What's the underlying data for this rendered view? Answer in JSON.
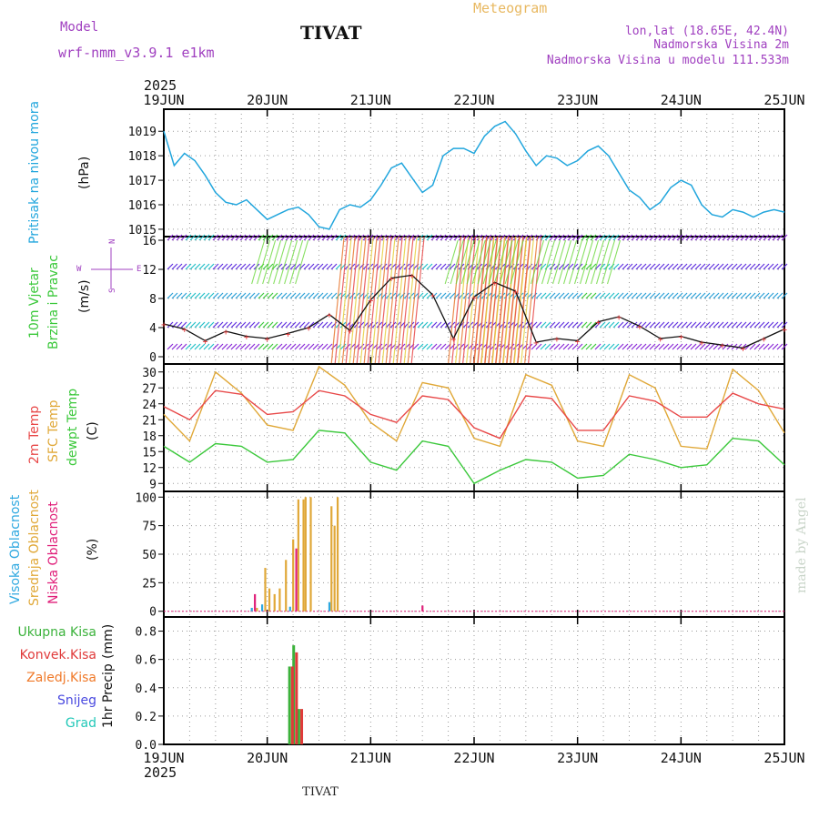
{
  "header": {
    "model_label": "Model",
    "model_name": "wrf-nmm_v3.9.1 e1km",
    "title": "TIVAT",
    "meteogram_label": "Meteogram",
    "lonlat": "lon,lat (18.65E, 42.4N)",
    "elevation": "Nadmorska Visina 2m",
    "model_elevation": "Nadmorska Visina u modelu 111.533m",
    "year": "2025",
    "footer_title": "TIVAT",
    "watermark": "made by Angel"
  },
  "colors": {
    "pressure": "#22a6dd",
    "temp2m": "#e84848",
    "sfc_temp": "#e0a838",
    "dewpt": "#3bc83b",
    "high_cloud": "#2ea8e0",
    "mid_cloud": "#e0a838",
    "low_cloud": "#e0207a",
    "total_precip": "#3bb23b",
    "conv_precip": "#e03a3a",
    "frozen_precip": "#f07a2a",
    "snow": "#4a4ae0",
    "hail": "#22c8b8",
    "header_purple": "#a040c0",
    "meteogram_orange": "#e8b860"
  },
  "chart_data": [
    {
      "type": "line",
      "panel": "pressure",
      "ylabel_main": "Pritisak na nivou mora",
      "unit": "(hPa)",
      "x_ticks": [
        "19JUN",
        "20JUN",
        "21JUN",
        "22JUN",
        "23JUN",
        "24JUN",
        "25JUN"
      ],
      "y_ticks": [
        1015,
        1016,
        1017,
        1018,
        1019
      ],
      "ylim": [
        1014.7,
        1019.9
      ],
      "grid": true,
      "series": [
        {
          "x": [
            0,
            0.1,
            0.2,
            0.3,
            0.4,
            0.5,
            0.6,
            0.7,
            0.8,
            0.9,
            1.0,
            1.1,
            1.2,
            1.3,
            1.4,
            1.5,
            1.6,
            1.7,
            1.8,
            1.9,
            2.0,
            2.1,
            2.2,
            2.3,
            2.4,
            2.5,
            2.6,
            2.7,
            2.8,
            2.9,
            3.0,
            3.1,
            3.2,
            3.3,
            3.4,
            3.5,
            3.6,
            3.7,
            3.8,
            3.9,
            4.0,
            4.1,
            4.2,
            4.3,
            4.4,
            4.5,
            4.6,
            4.7,
            4.8,
            4.9,
            5.0,
            5.1,
            5.2,
            5.3,
            5.4,
            5.5,
            5.6,
            5.7,
            5.8,
            5.9,
            6.0
          ],
          "values": [
            1019.0,
            1017.6,
            1018.1,
            1017.8,
            1017.2,
            1016.5,
            1016.1,
            1016.0,
            1016.2,
            1015.8,
            1015.4,
            1015.6,
            1015.8,
            1015.9,
            1015.6,
            1015.1,
            1015.0,
            1015.8,
            1016.0,
            1015.9,
            1016.2,
            1016.8,
            1017.5,
            1017.7,
            1017.1,
            1016.5,
            1016.8,
            1018.0,
            1018.3,
            1018.3,
            1018.1,
            1018.8,
            1019.2,
            1019.4,
            1018.9,
            1018.2,
            1017.6,
            1018.0,
            1017.9,
            1017.6,
            1017.8,
            1018.2,
            1018.4,
            1018.0,
            1017.3,
            1016.6,
            1016.3,
            1015.8,
            1016.1,
            1016.7,
            1017.0,
            1016.8,
            1016.0,
            1015.6,
            1015.5,
            1015.8,
            1015.7,
            1015.5,
            1015.7,
            1015.8,
            1015.7
          ]
        }
      ]
    },
    {
      "type": "line",
      "panel": "wind",
      "ylabel_main": "10m Vjetar",
      "ylabel_sub": "Brzina i Pravac",
      "unit": "(m/s)",
      "compass": [
        "N",
        "S",
        "W",
        "E"
      ],
      "y_ticks": [
        0,
        4,
        8,
        12,
        16
      ],
      "ylim": [
        -1,
        16.5
      ],
      "grid": true,
      "series": [
        {
          "name": "speed",
          "x": [
            0,
            0.2,
            0.4,
            0.6,
            0.8,
            1.0,
            1.2,
            1.4,
            1.6,
            1.8,
            2.0,
            2.2,
            2.4,
            2.6,
            2.8,
            3.0,
            3.2,
            3.4,
            3.6,
            3.8,
            4.0,
            4.2,
            4.4,
            4.6,
            4.8,
            5.0,
            5.2,
            5.4,
            5.6,
            5.8,
            6.0
          ],
          "values": [
            4.5,
            3.8,
            2.2,
            3.5,
            2.8,
            2.5,
            3.2,
            4.0,
            5.8,
            3.6,
            7.8,
            10.8,
            11.2,
            8.5,
            2.5,
            8.2,
            10.2,
            9.0,
            2.0,
            2.5,
            2.2,
            4.8,
            5.5,
            4.2,
            2.5,
            2.8,
            2.0,
            1.6,
            1.2,
            2.5,
            3.8
          ]
        }
      ],
      "shaded_periods": [
        [
          1.62,
          2.42
        ],
        [
          2.75,
          3.55
        ],
        [
          3.0,
          3.45
        ]
      ]
    },
    {
      "type": "line",
      "panel": "temperature",
      "ylabel_lines": [
        "2m Temp",
        "SFC Temp",
        "dewpt Temp"
      ],
      "unit": "(C)",
      "y_ticks": [
        9,
        12,
        15,
        18,
        21,
        24,
        27,
        30
      ],
      "ylim": [
        7.5,
        31.5
      ],
      "grid": true,
      "series": [
        {
          "name": "2m Temp",
          "x": [
            0,
            0.25,
            0.5,
            0.75,
            1.0,
            1.25,
            1.5,
            1.75,
            2.0,
            2.25,
            2.5,
            2.75,
            3.0,
            3.25,
            3.5,
            3.75,
            4.0,
            4.25,
            4.5,
            4.75,
            5.0,
            5.25,
            5.5,
            5.75,
            6.0
          ],
          "values": [
            23.5,
            21.0,
            26.5,
            25.8,
            22.0,
            22.5,
            26.5,
            25.5,
            22.0,
            20.5,
            25.5,
            24.8,
            19.5,
            17.5,
            25.5,
            25.0,
            19.0,
            19.0,
            25.5,
            24.5,
            21.5,
            21.5,
            26.0,
            24.0,
            23.0
          ]
        },
        {
          "name": "SFC Temp",
          "x": [
            0,
            0.25,
            0.5,
            0.75,
            1.0,
            1.25,
            1.5,
            1.75,
            2.0,
            2.25,
            2.5,
            2.75,
            3.0,
            3.25,
            3.5,
            3.75,
            4.0,
            4.25,
            4.5,
            4.75,
            5.0,
            5.25,
            5.5,
            5.75,
            6.0
          ],
          "values": [
            22.0,
            17.0,
            30.0,
            26.0,
            20.0,
            19.0,
            31.0,
            27.5,
            20.5,
            17.0,
            28.0,
            27.0,
            17.5,
            16.0,
            29.5,
            27.5,
            17.0,
            16.0,
            29.5,
            27.0,
            16.0,
            15.5,
            30.5,
            26.5,
            18.5
          ]
        },
        {
          "name": "dewpt Temp",
          "x": [
            0,
            0.25,
            0.5,
            0.75,
            1.0,
            1.25,
            1.5,
            1.75,
            2.0,
            2.25,
            2.5,
            2.75,
            3.0,
            3.25,
            3.5,
            3.75,
            4.0,
            4.25,
            4.5,
            4.75,
            5.0,
            5.25,
            5.5,
            5.75,
            6.0
          ],
          "values": [
            16.0,
            13.0,
            16.5,
            16.0,
            13.0,
            13.5,
            19.0,
            18.5,
            13.0,
            11.5,
            17.0,
            16.0,
            9.0,
            11.5,
            13.5,
            13.0,
            10.0,
            10.5,
            14.5,
            13.5,
            12.0,
            12.5,
            17.5,
            17.0,
            12.5
          ]
        }
      ]
    },
    {
      "type": "bar",
      "panel": "cloud",
      "ylabel_lines": [
        "Visoka Oblacnost",
        "Srednja Oblacnost",
        "Niska Oblacnost"
      ],
      "unit": "(%)",
      "y_ticks": [
        0,
        25,
        50,
        75,
        100
      ],
      "ylim": [
        -5,
        105
      ],
      "grid": true,
      "series": [
        {
          "name": "Srednja Oblacnost",
          "x": [
            0.9,
            0.98,
            1.02,
            1.07,
            1.12,
            1.18,
            1.25,
            1.3,
            1.35,
            1.37,
            1.42,
            1.62,
            1.68
          ],
          "values": [
            3,
            38,
            20,
            15,
            20,
            45,
            63,
            98,
            98,
            100,
            100,
            92,
            100
          ]
        },
        {
          "name": "Srednja Oblacnost 2",
          "x": [
            1.65
          ],
          "values": [
            75
          ]
        },
        {
          "name": "Visoka Oblacnost",
          "x": [
            0.85,
            0.95,
            1.22,
            1.6
          ],
          "values": [
            3,
            6,
            4,
            8
          ]
        },
        {
          "name": "Niska Oblacnost",
          "x": [
            0.88,
            1.28,
            2.5
          ],
          "values": [
            15,
            55,
            5
          ]
        }
      ]
    },
    {
      "type": "bar",
      "panel": "precip",
      "ylabel_main": "1hr Precip",
      "unit": "(mm)",
      "legend": [
        "Ukupna Kisa",
        "Konvek.Kisa",
        "Zaledj.Kisa",
        "Snijeg",
        "Grad"
      ],
      "y_ticks": [
        0,
        0.2,
        0.4,
        0.6,
        0.8
      ],
      "ylim": [
        0,
        0.9
      ],
      "grid": true,
      "series": [
        {
          "name": "Ukupna Kisa",
          "x": [
            1.22,
            1.26,
            1.31
          ],
          "values": [
            0.55,
            0.7,
            0.25
          ]
        },
        {
          "name": "Konvek.Kisa",
          "x": [
            1.23,
            1.27,
            1.32
          ],
          "values": [
            0.55,
            0.65,
            0.25
          ]
        }
      ]
    }
  ]
}
